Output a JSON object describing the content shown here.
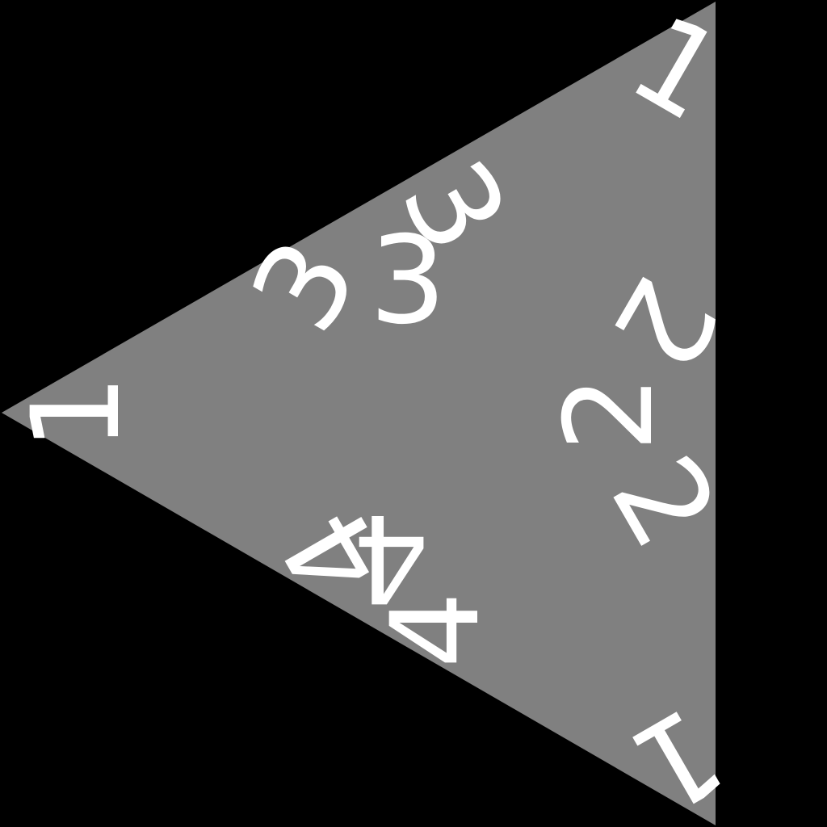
{
  "colors": {
    "background": "#000000",
    "face": "#808080",
    "label": "#ffffff"
  },
  "net": {
    "corners": {
      "left_tip": "1",
      "top_right": "1",
      "bottom_right": "1"
    },
    "faces": {
      "top": [
        "3",
        "3",
        "3"
      ],
      "right": [
        "2",
        "2",
        "2"
      ],
      "bottom": [
        "4",
        "4",
        "4"
      ]
    }
  }
}
